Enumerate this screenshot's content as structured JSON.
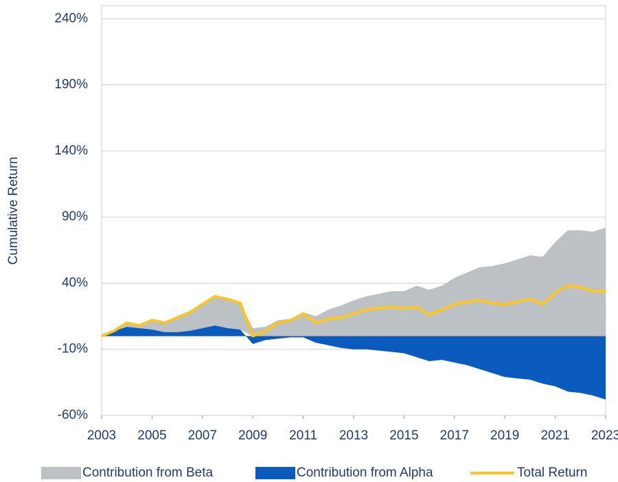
{
  "chart_data": {
    "type": "stacked_area_line",
    "y_label": "Cumulative Return",
    "x": [
      2003,
      2003.5,
      2004,
      2004.5,
      2005,
      2005.5,
      2006,
      2006.5,
      2007,
      2007.5,
      2008,
      2008.5,
      2009,
      2009.5,
      2010,
      2010.5,
      2011,
      2011.5,
      2012,
      2012.5,
      2013,
      2013.5,
      2014,
      2014.5,
      2015,
      2015.5,
      2016,
      2016.5,
      2017,
      2017.5,
      2018,
      2018.5,
      2019,
      2019.5,
      2020,
      2020.5,
      2021,
      2021.5,
      2022,
      2022.5,
      2023
    ],
    "series": [
      {
        "name": "Contribution from Beta",
        "color": "#bcc1c6",
        "kind": "area",
        "values": [
          0,
          0,
          3,
          2,
          7,
          7,
          11,
          14,
          18,
          22,
          22,
          20,
          6,
          7,
          12,
          13,
          18,
          15,
          20,
          23,
          27,
          30,
          32,
          34,
          34,
          38,
          35,
          38,
          44,
          48,
          52,
          53,
          55,
          58,
          61,
          60,
          71,
          80,
          80,
          79,
          82
        ]
      },
      {
        "name": "Contribution from Alpha",
        "color": "#0a5bbd",
        "kind": "area",
        "values": [
          0,
          4,
          7,
          6,
          5,
          3,
          3,
          4,
          6,
          8,
          6,
          5,
          -6,
          -3,
          -2,
          -1,
          -1,
          -5,
          -7,
          -9,
          -10,
          -10,
          -11,
          -12,
          -13,
          -16,
          -19,
          -18,
          -20,
          -22,
          -25,
          -28,
          -31,
          -32,
          -33,
          -36,
          -38,
          -42,
          -43,
          -45,
          -48
        ]
      },
      {
        "name": "Total Return",
        "color": "#fcc520",
        "kind": "line",
        "values": [
          0,
          4,
          10,
          8,
          12,
          10,
          14,
          18,
          24,
          30,
          28,
          25,
          0,
          4,
          10,
          12,
          17,
          10,
          13,
          14,
          17,
          20,
          21,
          22,
          21,
          22,
          16,
          20,
          24,
          26,
          27,
          25,
          24,
          26,
          28,
          24,
          33,
          38,
          37,
          34,
          34
        ]
      }
    ],
    "xlim": [
      2003,
      2023
    ],
    "xticks": [
      2003,
      2005,
      2007,
      2009,
      2011,
      2013,
      2015,
      2017,
      2019,
      2021,
      2023
    ],
    "ylim": [
      -60,
      250
    ],
    "yticks": [
      {
        "value": -60,
        "label": "-60%"
      },
      {
        "value": -10,
        "label": "-10%"
      },
      {
        "value": 40,
        "label": "40%"
      },
      {
        "value": 90,
        "label": "90%"
      },
      {
        "value": 140,
        "label": "140%"
      },
      {
        "value": 190,
        "label": "190%"
      },
      {
        "value": 240,
        "label": "240%"
      }
    ],
    "grid": true,
    "legend": "bottom"
  }
}
